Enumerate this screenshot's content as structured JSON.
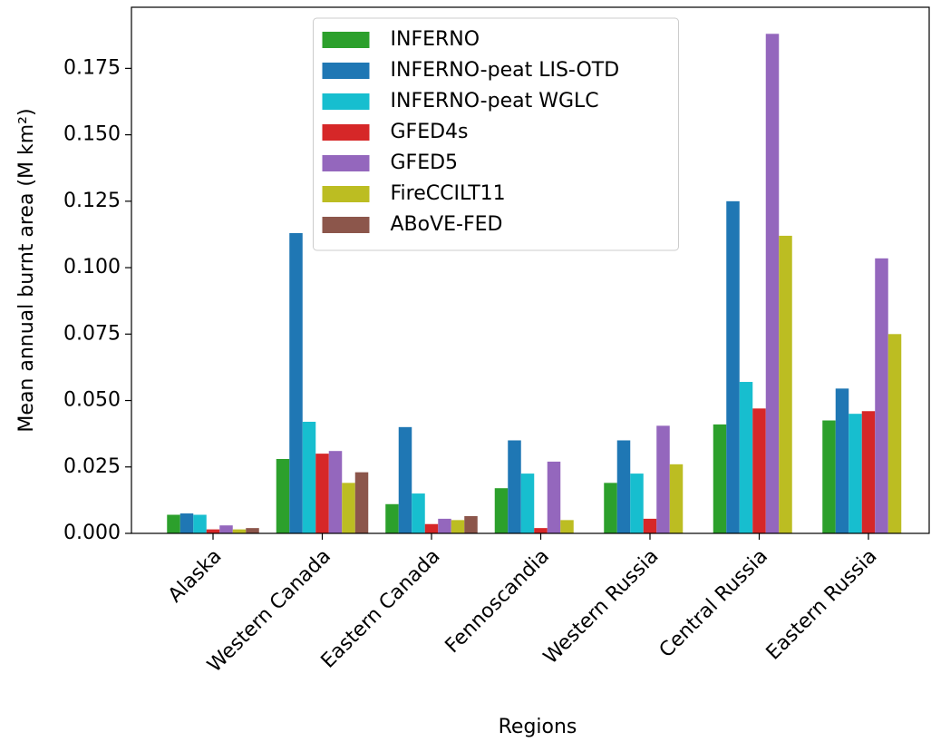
{
  "chart_data": {
    "type": "bar",
    "x_label": "Regions",
    "y_label": "Mean annual burnt area (M km²)",
    "categories": [
      "Alaska",
      "Western Canada",
      "Eastern Canada",
      "Fennoscandia",
      "Western Russia",
      "Central Russia",
      "Eastern Russia"
    ],
    "series": [
      {
        "name": "INFERNO",
        "color": "#2ca02c",
        "values": [
          0.007,
          0.028,
          0.011,
          0.017,
          0.019,
          0.041,
          0.0425
        ]
      },
      {
        "name": "INFERNO-peat LIS-OTD",
        "color": "#1f77b4",
        "values": [
          0.0075,
          0.113,
          0.04,
          0.035,
          0.035,
          0.125,
          0.0545
        ]
      },
      {
        "name": "INFERNO-peat WGLC",
        "color": "#17becf",
        "values": [
          0.007,
          0.042,
          0.015,
          0.0225,
          0.0225,
          0.057,
          0.045
        ]
      },
      {
        "name": "GFED4s",
        "color": "#d62728",
        "values": [
          0.0015,
          0.03,
          0.0035,
          0.002,
          0.0055,
          0.047,
          0.046
        ]
      },
      {
        "name": "GFED5",
        "color": "#9467bd",
        "values": [
          0.003,
          0.031,
          0.0055,
          0.027,
          0.0405,
          0.188,
          0.1035
        ]
      },
      {
        "name": "FireCCILT11",
        "color": "#bcbd22",
        "values": [
          0.0015,
          0.019,
          0.005,
          0.005,
          0.026,
          0.112,
          0.075
        ]
      },
      {
        "name": "ABoVE-FED",
        "color": "#8c564b",
        "values": [
          0.002,
          0.023,
          0.0065,
          null,
          null,
          null,
          null
        ]
      }
    ],
    "ylim": [
      0,
      0.198
    ],
    "yticks": [
      {
        "value": 0,
        "label": "0.000"
      },
      0.025,
      {
        "value": 0.05,
        "label": "0.050"
      },
      0.075,
      {
        "value": 0.1,
        "label": "0.100"
      },
      0.125,
      {
        "value": 0.15,
        "label": "0.150"
      },
      0.175
    ],
    "legend": "upper center"
  }
}
